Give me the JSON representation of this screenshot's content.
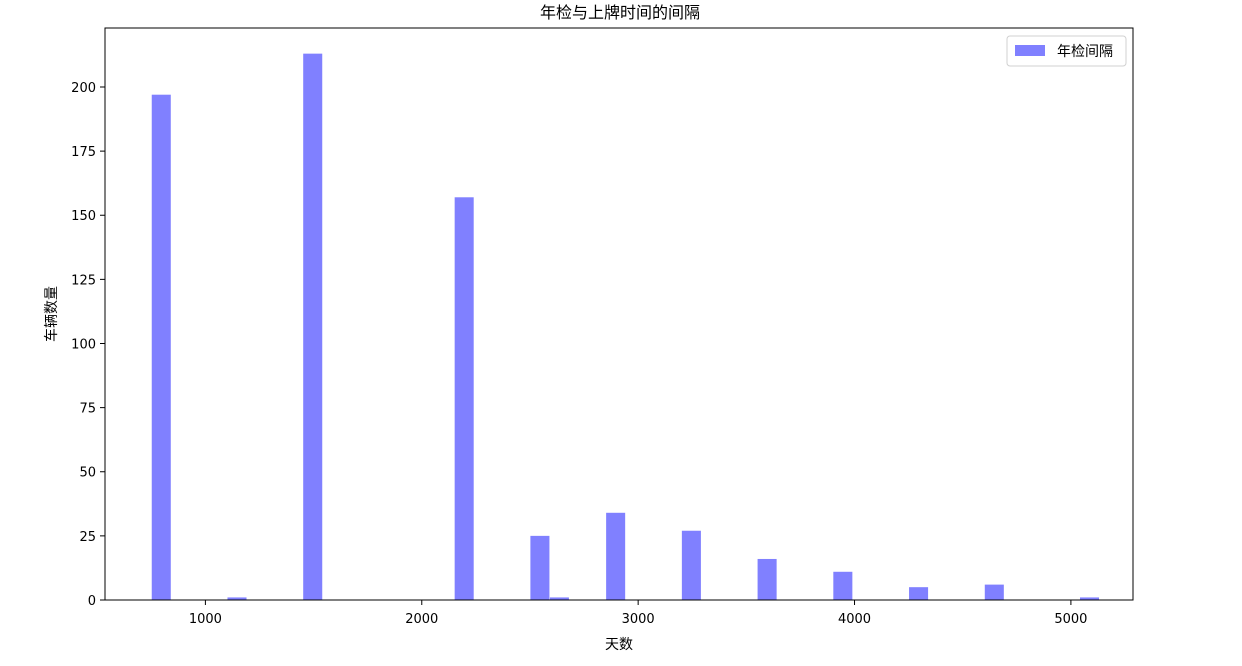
{
  "chart_data": {
    "type": "bar",
    "title": "年检与上牌时间的间隔",
    "xlabel": "天数",
    "ylabel": "车辆数量",
    "xlim": [
      536,
      5287
    ],
    "ylim": [
      0,
      223
    ],
    "xticks": [
      1000,
      2000,
      3000,
      4000,
      5000
    ],
    "yticks": [
      0,
      25,
      50,
      75,
      100,
      125,
      150,
      175,
      200
    ],
    "bar_width": 88,
    "bar_color": "#8080ff",
    "grid": false,
    "legend": {
      "position": "top-right",
      "entries": [
        "年检间隔"
      ]
    },
    "series": [
      {
        "name": "年检间隔",
        "x": [
          796,
          1146,
          1496,
          2196,
          2546,
          2636,
          2896,
          3246,
          3596,
          3946,
          4296,
          4646,
          5086
        ],
        "values": [
          197,
          1,
          213,
          157,
          25,
          1,
          34,
          27,
          16,
          11,
          5,
          6,
          1
        ]
      }
    ]
  }
}
